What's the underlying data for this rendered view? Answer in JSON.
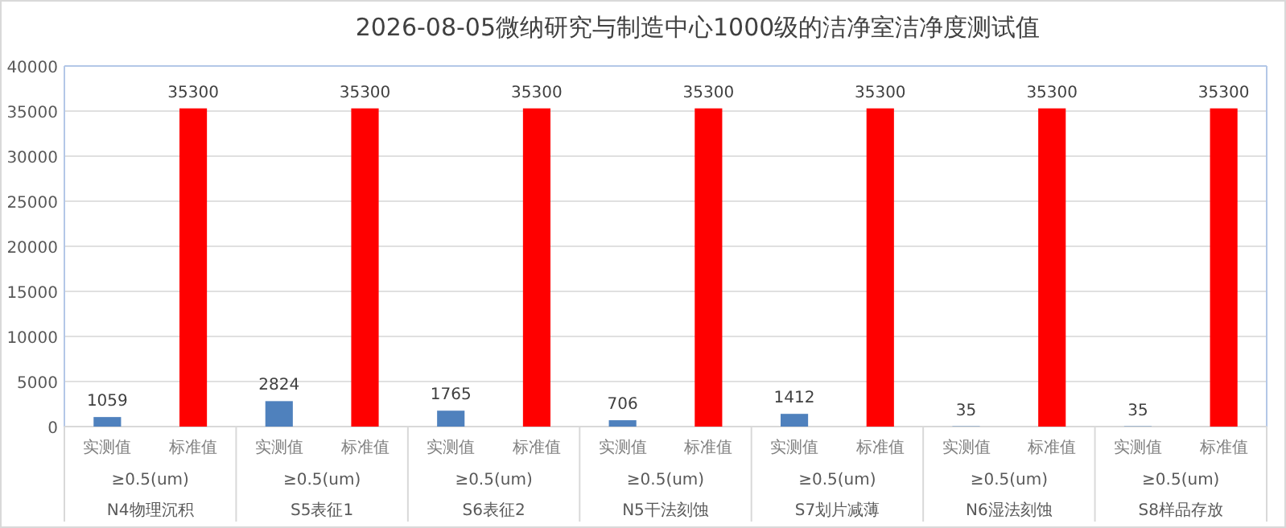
{
  "chart_data": {
    "type": "bar",
    "title": "2026-08-05微纳研究与制造中心1000级的洁净室洁净度测试值",
    "categories": [
      "实测值",
      "标准值",
      "实测值",
      "标准值",
      "实测值",
      "标准值",
      "实测值",
      "标准值",
      "实测值",
      "标准值",
      "实测值",
      "标准值",
      "实测值",
      "标准值"
    ],
    "values": [
      1059,
      35300,
      2824,
      35300,
      1765,
      35300,
      706,
      35300,
      1412,
      35300,
      35,
      35300,
      35,
      35300
    ],
    "colors": [
      "#4f81bd",
      "#ff0000",
      "#4f81bd",
      "#ff0000",
      "#4f81bd",
      "#ff0000",
      "#4f81bd",
      "#ff0000",
      "#4f81bd",
      "#ff0000",
      "#4f81bd",
      "#ff0000",
      "#4f81bd",
      "#ff0000"
    ],
    "ylim": [
      0,
      40000
    ],
    "yticks": [
      0,
      5000,
      10000,
      15000,
      20000,
      25000,
      30000,
      35000,
      40000
    ],
    "grid": "y",
    "data_labels": true,
    "annotations": [
      "≥0.5(um)",
      "N4物理沉积",
      "≥0.5(um)",
      "S5表征1",
      "≥0.5(um)",
      "S6表征2",
      "≥0.5(um)",
      "N5干法刻蚀",
      "≥0.5(um)",
      "S7划片减薄",
      "≥0.5(um)",
      "N6湿法刻蚀",
      "≥0.5(um)",
      "S8样品存放"
    ]
  }
}
